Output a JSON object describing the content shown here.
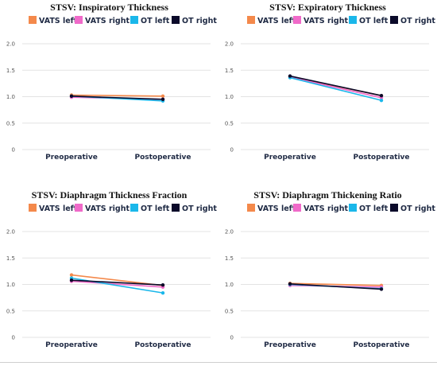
{
  "colors": {
    "vats_left": "#f4894b",
    "vats_right": "#f06ac9",
    "ot_left": "#1ab7ea",
    "ot_right": "#0b0a2a"
  },
  "chart_data": [
    {
      "type": "line",
      "title": "STSV: Inspiratory Thickness",
      "categories": [
        "Preoperative",
        "Postoperative"
      ],
      "ylim": [
        0,
        2.0
      ],
      "yticks": [
        "0",
        "0.5",
        "1.0",
        "1.5",
        "2.0"
      ],
      "grid": true,
      "legend_position": "top",
      "series": [
        {
          "name": "VATS left",
          "values": [
            1.03,
            1.01
          ]
        },
        {
          "name": "VATS right",
          "values": [
            0.99,
            0.95
          ]
        },
        {
          "name": "OT left",
          "values": [
            1.01,
            0.92
          ]
        },
        {
          "name": "OT right",
          "values": [
            1.01,
            0.95
          ]
        }
      ]
    },
    {
      "type": "line",
      "title": "STSV: Expiratory Thickness",
      "categories": [
        "Preoperative",
        "Postoperative"
      ],
      "ylim": [
        0,
        2.0
      ],
      "yticks": [
        "0",
        "0.5",
        "1.0",
        "1.5",
        "2.0"
      ],
      "grid": true,
      "legend_position": "top",
      "series": [
        {
          "name": "VATS left",
          "values": [
            1.38,
            1.02
          ]
        },
        {
          "name": "VATS right",
          "values": [
            1.37,
            0.98
          ]
        },
        {
          "name": "OT left",
          "values": [
            1.36,
            0.93
          ]
        },
        {
          "name": "OT right",
          "values": [
            1.39,
            1.02
          ]
        }
      ]
    },
    {
      "type": "line",
      "title": "STSV: Diaphragm Thickness Fraction",
      "categories": [
        "Preoperative",
        "Postoperative"
      ],
      "ylim": [
        0,
        2.0
      ],
      "yticks": [
        "0",
        "0.5",
        "1.0",
        "1.5",
        "2.0"
      ],
      "grid": true,
      "legend_position": "top",
      "series": [
        {
          "name": "VATS left",
          "values": [
            1.18,
            0.98
          ]
        },
        {
          "name": "VATS right",
          "values": [
            1.06,
            0.95
          ]
        },
        {
          "name": "OT left",
          "values": [
            1.12,
            0.84
          ]
        },
        {
          "name": "OT right",
          "values": [
            1.08,
            0.99
          ]
        }
      ]
    },
    {
      "type": "line",
      "title": "STSV: Diaphragm Thickening Ratio",
      "categories": [
        "Preoperative",
        "Postoperative"
      ],
      "ylim": [
        0,
        2.0
      ],
      "yticks": [
        "0",
        "0.5",
        "1.0",
        "1.5",
        "2.0"
      ],
      "grid": true,
      "legend_position": "top",
      "series": [
        {
          "name": "VATS left",
          "values": [
            1.02,
            0.98
          ]
        },
        {
          "name": "VATS right",
          "values": [
            0.98,
            0.95
          ]
        },
        {
          "name": "OT left",
          "values": [
            1.0,
            0.92
          ]
        },
        {
          "name": "OT right",
          "values": [
            1.01,
            0.91
          ]
        }
      ]
    }
  ]
}
